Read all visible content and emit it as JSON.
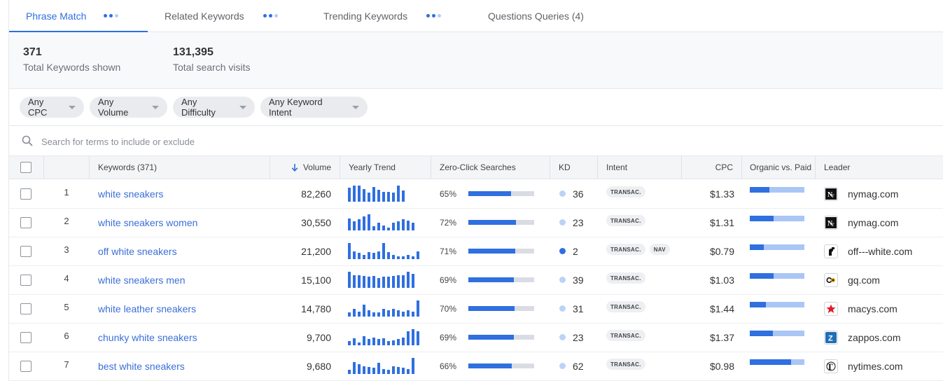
{
  "tabs": [
    {
      "label": "Phrase Match",
      "active": true
    },
    {
      "label": "Related Keywords",
      "active": false
    },
    {
      "label": "Trending Keywords",
      "active": false
    },
    {
      "label": "Questions Queries (4)",
      "active": false
    }
  ],
  "stats": {
    "total_keywords": {
      "value": "371",
      "label": "Total Keywords shown"
    },
    "total_visits": {
      "value": "131,395",
      "label": "Total search visits"
    }
  },
  "filters": [
    "Any CPC",
    "Any Volume",
    "Any Difficulty",
    "Any Keyword Intent"
  ],
  "search": {
    "placeholder": "Search for terms to include or exclude"
  },
  "columns": {
    "keywords": "Keywords (371)",
    "volume": "Volume",
    "trend": "Yearly Trend",
    "zero_click": "Zero-Click Searches",
    "kd": "KD",
    "intent": "Intent",
    "cpc": "CPC",
    "organic_paid": "Organic vs. Paid",
    "leader": "Leader"
  },
  "colors": {
    "accent": "#2f6fe0",
    "kd_light": "#bcd3f7",
    "kd_dark": "#2f6fe0"
  },
  "rows": [
    {
      "num": "1",
      "keyword": "white sneakers",
      "volume": "82,260",
      "trend": [
        0.85,
        0.95,
        0.95,
        0.8,
        0.6,
        0.9,
        0.75,
        0.65,
        0.65,
        0.6,
        0.95,
        0.7
      ],
      "zero_click": "65%",
      "zero_click_fraction": 0.65,
      "kd": "36",
      "kd_level": "light",
      "intent": [
        "TRANSAC."
      ],
      "cpc": "$1.33",
      "organic_fraction": 0.36,
      "leader": "nymag.com",
      "leader_icon": "nymag-logo-icon"
    },
    {
      "num": "2",
      "keyword": "white sneakers women",
      "volume": "30,550",
      "trend": [
        0.75,
        0.6,
        0.7,
        0.85,
        0.95,
        0.35,
        0.55,
        0.4,
        0.3,
        0.55,
        0.6,
        0.7,
        0.65,
        0.55
      ],
      "zero_click": "72%",
      "zero_click_fraction": 0.72,
      "kd": "23",
      "kd_level": "light",
      "intent": [
        "TRANSAC."
      ],
      "cpc": "$1.31",
      "organic_fraction": 0.44,
      "leader": "nymag.com",
      "leader_icon": "nymag-logo-icon"
    },
    {
      "num": "3",
      "keyword": "off white sneakers",
      "volume": "21,200",
      "trend": [
        0.95,
        0.55,
        0.45,
        0.35,
        0.5,
        0.45,
        0.55,
        0.95,
        0.5,
        0.35,
        0.3,
        0.3,
        0.35,
        0.3,
        0.55
      ],
      "zero_click": "71%",
      "zero_click_fraction": 0.71,
      "kd": "2",
      "kd_level": "dark",
      "intent": [
        "TRANSAC.",
        "NAV"
      ],
      "cpc": "$0.79",
      "organic_fraction": 0.25,
      "leader": "off---white.com",
      "leader_icon": "off-white-logo-icon"
    },
    {
      "num": "4",
      "keyword": "white sneakers men",
      "volume": "15,100",
      "trend": [
        0.95,
        0.8,
        0.8,
        0.75,
        0.7,
        0.75,
        0.65,
        0.7,
        0.7,
        0.75,
        0.8,
        0.8,
        0.95,
        0.85
      ],
      "zero_click": "69%",
      "zero_click_fraction": 0.69,
      "kd": "39",
      "kd_level": "light",
      "intent": [
        "TRANSAC."
      ],
      "cpc": "$1.03",
      "organic_fraction": 0.44,
      "leader": "gq.com",
      "leader_icon": "gq-logo-icon"
    },
    {
      "num": "5",
      "keyword": "white leather sneakers",
      "volume": "14,780",
      "trend": [
        0.35,
        0.55,
        0.4,
        0.75,
        0.45,
        0.35,
        0.35,
        0.55,
        0.45,
        0.55,
        0.45,
        0.4,
        0.45,
        0.4,
        0.95
      ],
      "zero_click": "70%",
      "zero_click_fraction": 0.7,
      "kd": "31",
      "kd_level": "light",
      "intent": [
        "TRANSAC."
      ],
      "cpc": "$1.44",
      "organic_fraction": 0.29,
      "leader": "macys.com",
      "leader_icon": "macys-star-icon"
    },
    {
      "num": "6",
      "keyword": "chunky white sneakers",
      "volume": "9,700",
      "trend": [
        0.35,
        0.5,
        0.3,
        0.6,
        0.45,
        0.55,
        0.45,
        0.5,
        0.35,
        0.4,
        0.45,
        0.55,
        0.85,
        0.95,
        0.85
      ],
      "zero_click": "69%",
      "zero_click_fraction": 0.69,
      "kd": "23",
      "kd_level": "light",
      "intent": [
        "TRANSAC."
      ],
      "cpc": "$1.37",
      "organic_fraction": 0.42,
      "leader": "zappos.com",
      "leader_icon": "zappos-logo-icon"
    },
    {
      "num": "7",
      "keyword": "best white sneakers",
      "volume": "9,680",
      "trend": [
        0.35,
        0.75,
        0.65,
        0.55,
        0.5,
        0.45,
        0.7,
        0.4,
        0.35,
        0.55,
        0.5,
        0.45,
        0.4,
        0.95
      ],
      "zero_click": "66%",
      "zero_click_fraction": 0.66,
      "kd": "62",
      "kd_level": "light",
      "intent": [
        "TRANSAC."
      ],
      "cpc": "$0.98",
      "organic_fraction": 0.75,
      "leader": "nytimes.com",
      "leader_icon": "nytimes-logo-icon"
    }
  ]
}
